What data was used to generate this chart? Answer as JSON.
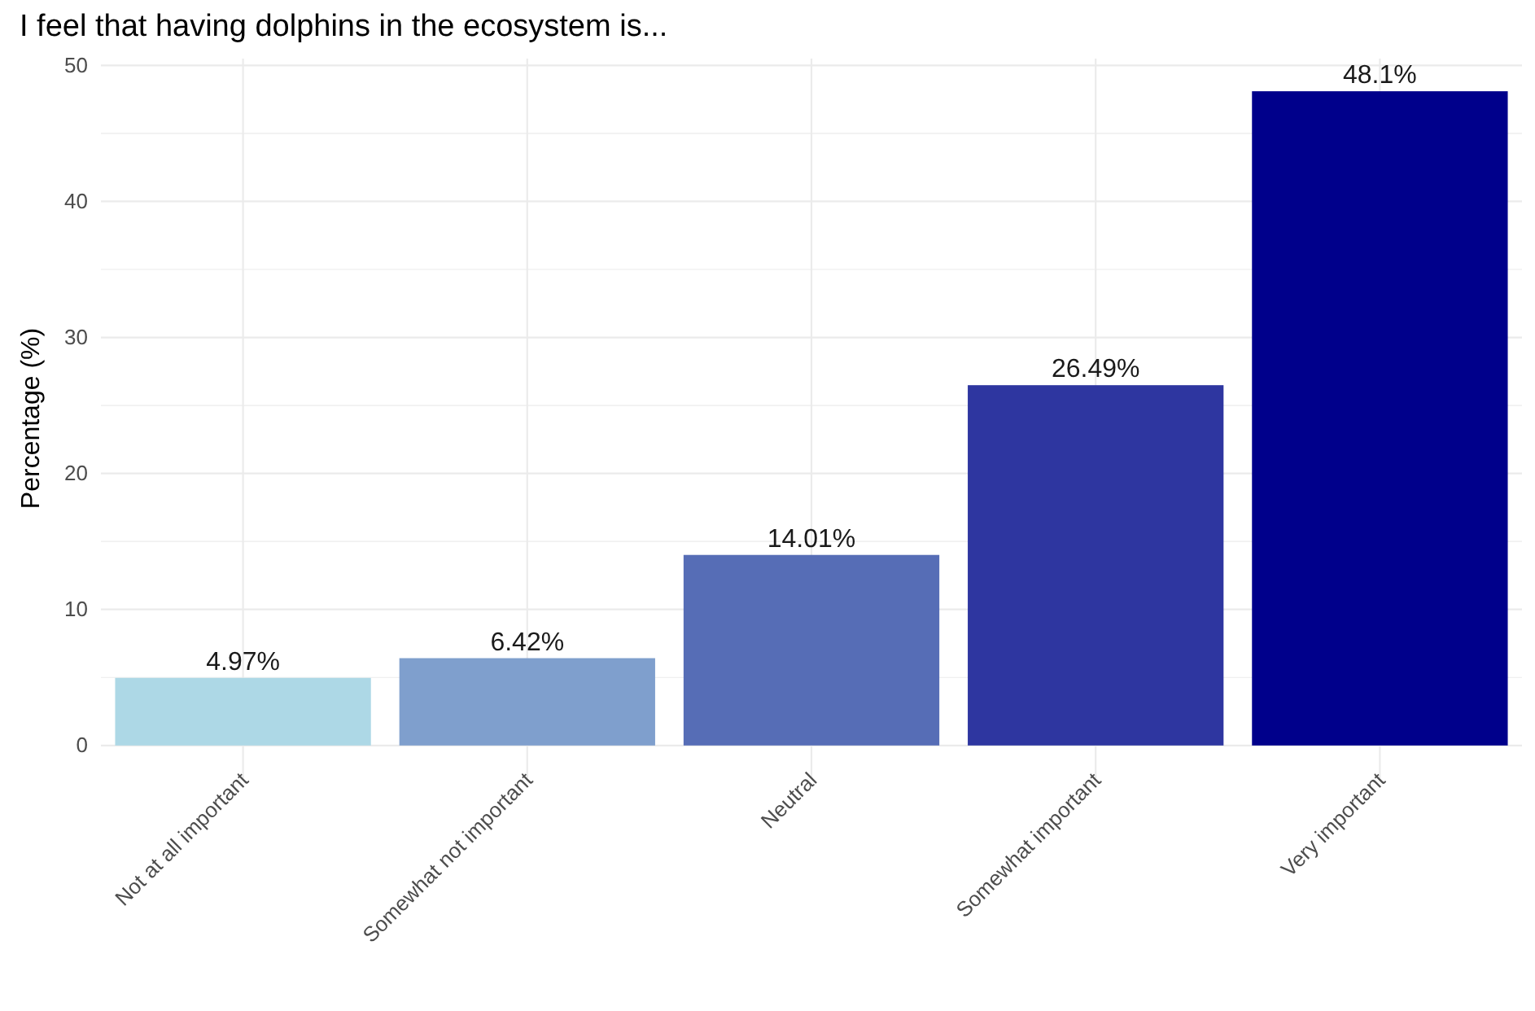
{
  "chart_data": {
    "type": "bar",
    "title": "I feel that having dolphins in the ecosystem is...",
    "ylabel": "Percentage (%)",
    "categories": [
      "Not at all important",
      "Somewhat not important",
      "Neutral",
      "Somewhat important",
      "Very important"
    ],
    "values": [
      4.97,
      6.42,
      14.01,
      26.49,
      48.1
    ],
    "colors": [
      "#add8e6",
      "#7f9fcd",
      "#566db6",
      "#2e36a0",
      "#00008b"
    ],
    "value_labels": [
      "4.97%",
      "6.42%",
      "14.01%",
      "26.49%",
      "48.1%"
    ],
    "ylim": [
      -2.405,
      50.5
    ],
    "yticks": [
      0,
      {
        "value": 5,
        "label": null
      },
      10,
      {
        "value": 15,
        "label": null
      },
      20,
      {
        "value": 25,
        "label": null
      },
      30,
      {
        "value": 35,
        "label": null
      },
      40,
      {
        "value": 45,
        "label": null
      },
      50
    ],
    "grid": true
  }
}
